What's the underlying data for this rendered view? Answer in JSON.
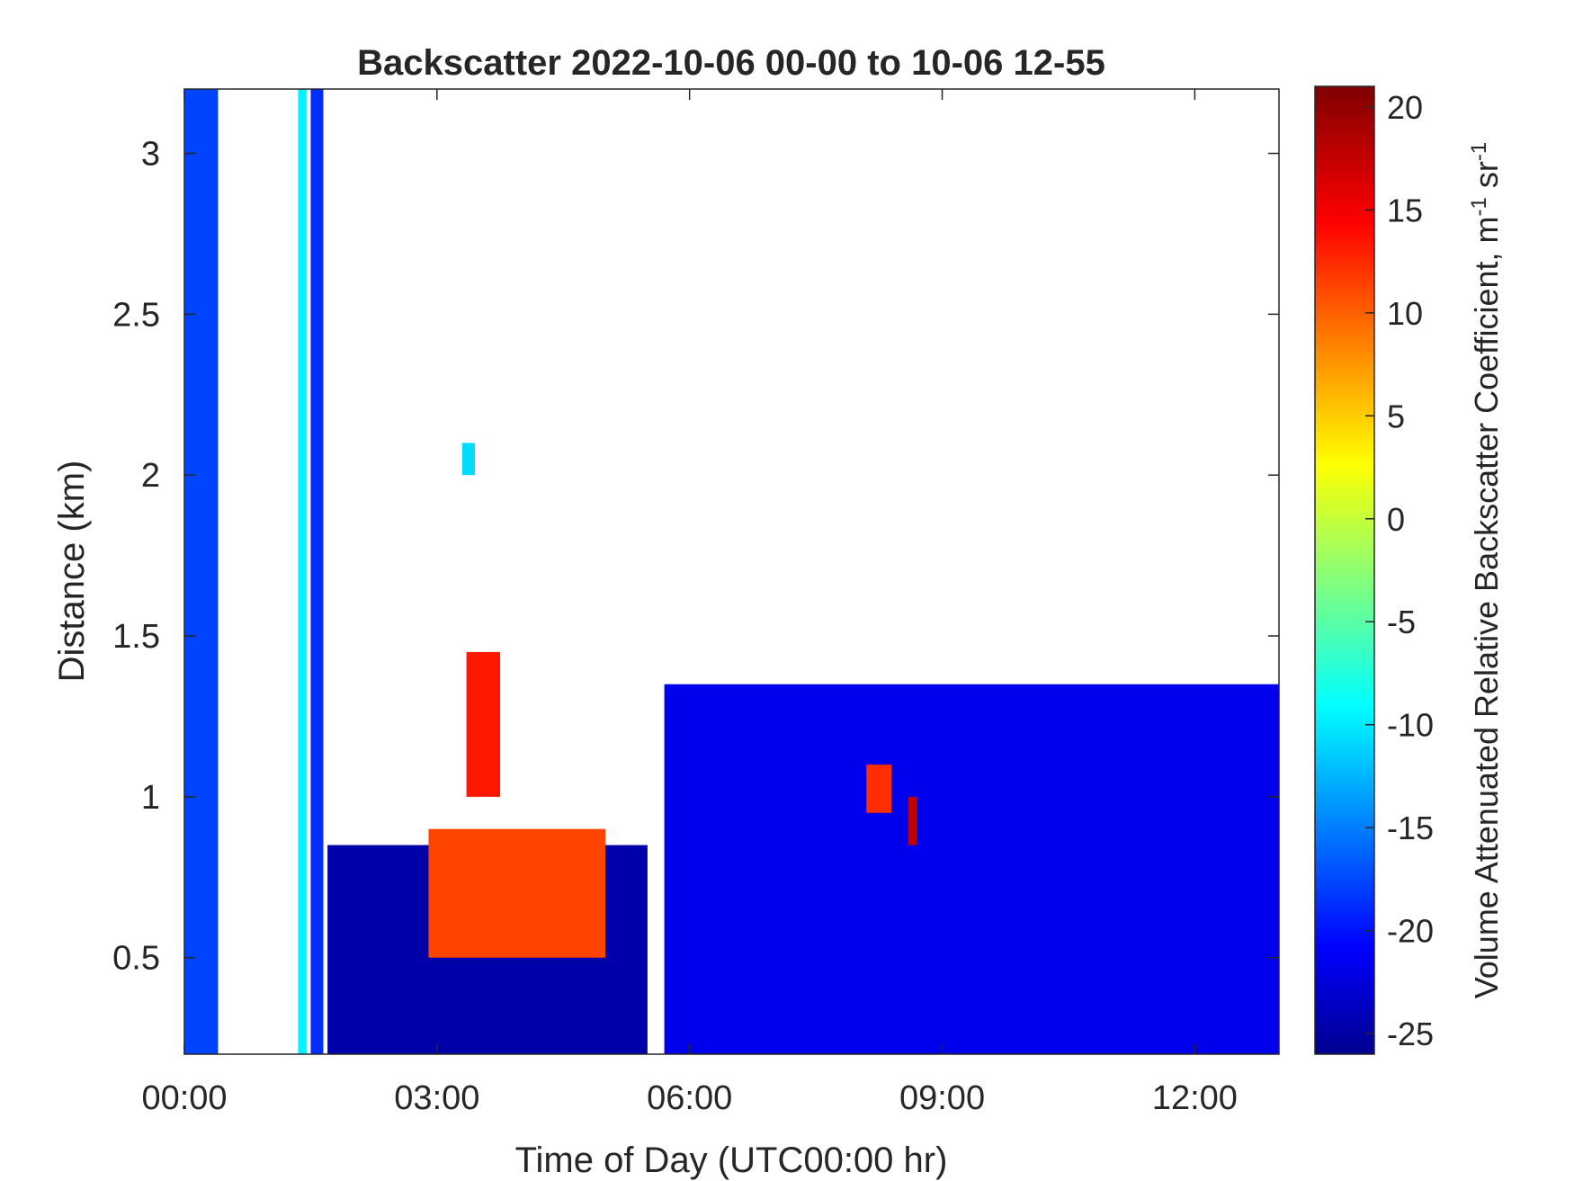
{
  "chart_data": {
    "type": "heatmap",
    "title": "Backscatter 2022-10-06 00-00 to 10-06 12-55",
    "xlabel": "Time of Day (UTC00:00 hr)",
    "ylabel": "Distance (km)",
    "colorbar_label": "Volume Attenuated Relative Backscatter Coefficient, m",
    "colorbar_label_sup1": "-1",
    "colorbar_label_mid": " sr",
    "colorbar_label_sup2": "-1",
    "colormap": "jet",
    "clim": [
      -26,
      21
    ],
    "xlim_hours": [
      0,
      13
    ],
    "ylim_km": [
      0.2,
      3.2
    ],
    "x_ticks": [
      {
        "value": 0,
        "label": "00:00"
      },
      {
        "value": 3,
        "label": "03:00"
      },
      {
        "value": 6,
        "label": "06:00"
      },
      {
        "value": 9,
        "label": "09:00"
      },
      {
        "value": 12,
        "label": "12:00"
      }
    ],
    "y_ticks": [
      {
        "value": 0.5,
        "label": "0.5"
      },
      {
        "value": 1,
        "label": "1"
      },
      {
        "value": 1.5,
        "label": "1.5"
      },
      {
        "value": 2,
        "label": "2"
      },
      {
        "value": 2.5,
        "label": "2.5"
      },
      {
        "value": 3,
        "label": "3"
      }
    ],
    "colorbar_ticks": [
      {
        "value": 20,
        "label": "20"
      },
      {
        "value": 15,
        "label": "15"
      },
      {
        "value": 10,
        "label": "10"
      },
      {
        "value": 5,
        "label": "5"
      },
      {
        "value": 0,
        "label": "0"
      },
      {
        "value": -5,
        "label": "-5"
      },
      {
        "value": -10,
        "label": "-10"
      },
      {
        "value": -15,
        "label": "-15"
      },
      {
        "value": -20,
        "label": "-20"
      },
      {
        "value": -25,
        "label": "-25"
      }
    ],
    "regions": [
      {
        "name": "column-0000",
        "t": [
          0.0,
          0.4
        ],
        "z": [
          0.2,
          3.2
        ],
        "value": -17
      },
      {
        "name": "column-0120",
        "t": [
          1.35,
          1.45
        ],
        "z": [
          0.2,
          3.2
        ],
        "value": -9
      },
      {
        "name": "column-0135",
        "t": [
          1.5,
          1.65
        ],
        "z": [
          0.2,
          3.2
        ],
        "value": -18
      },
      {
        "name": "low-cloud-0200-0500",
        "t": [
          1.7,
          5.5
        ],
        "z": [
          0.2,
          0.85
        ],
        "value": -24
      },
      {
        "name": "plume-0300-0500",
        "t": [
          2.9,
          5.0
        ],
        "z": [
          0.5,
          0.9
        ],
        "value": 12
      },
      {
        "name": "rising-feature-0330",
        "t": [
          3.35,
          3.75
        ],
        "z": [
          1.0,
          1.45
        ],
        "value": 14
      },
      {
        "name": "blob-0325",
        "t": [
          3.3,
          3.45
        ],
        "z": [
          2.0,
          2.1
        ],
        "value": -10
      },
      {
        "name": "layer-0530-1300",
        "t": [
          5.7,
          13.0
        ],
        "z": [
          0.2,
          1.35
        ],
        "value": -21
      },
      {
        "name": "feature-0815",
        "t": [
          8.1,
          8.4
        ],
        "z": [
          0.95,
          1.1
        ],
        "value": 13
      },
      {
        "name": "feature-0840",
        "t": [
          8.6,
          8.7
        ],
        "z": [
          0.85,
          1.0
        ],
        "value": 18
      }
    ]
  }
}
